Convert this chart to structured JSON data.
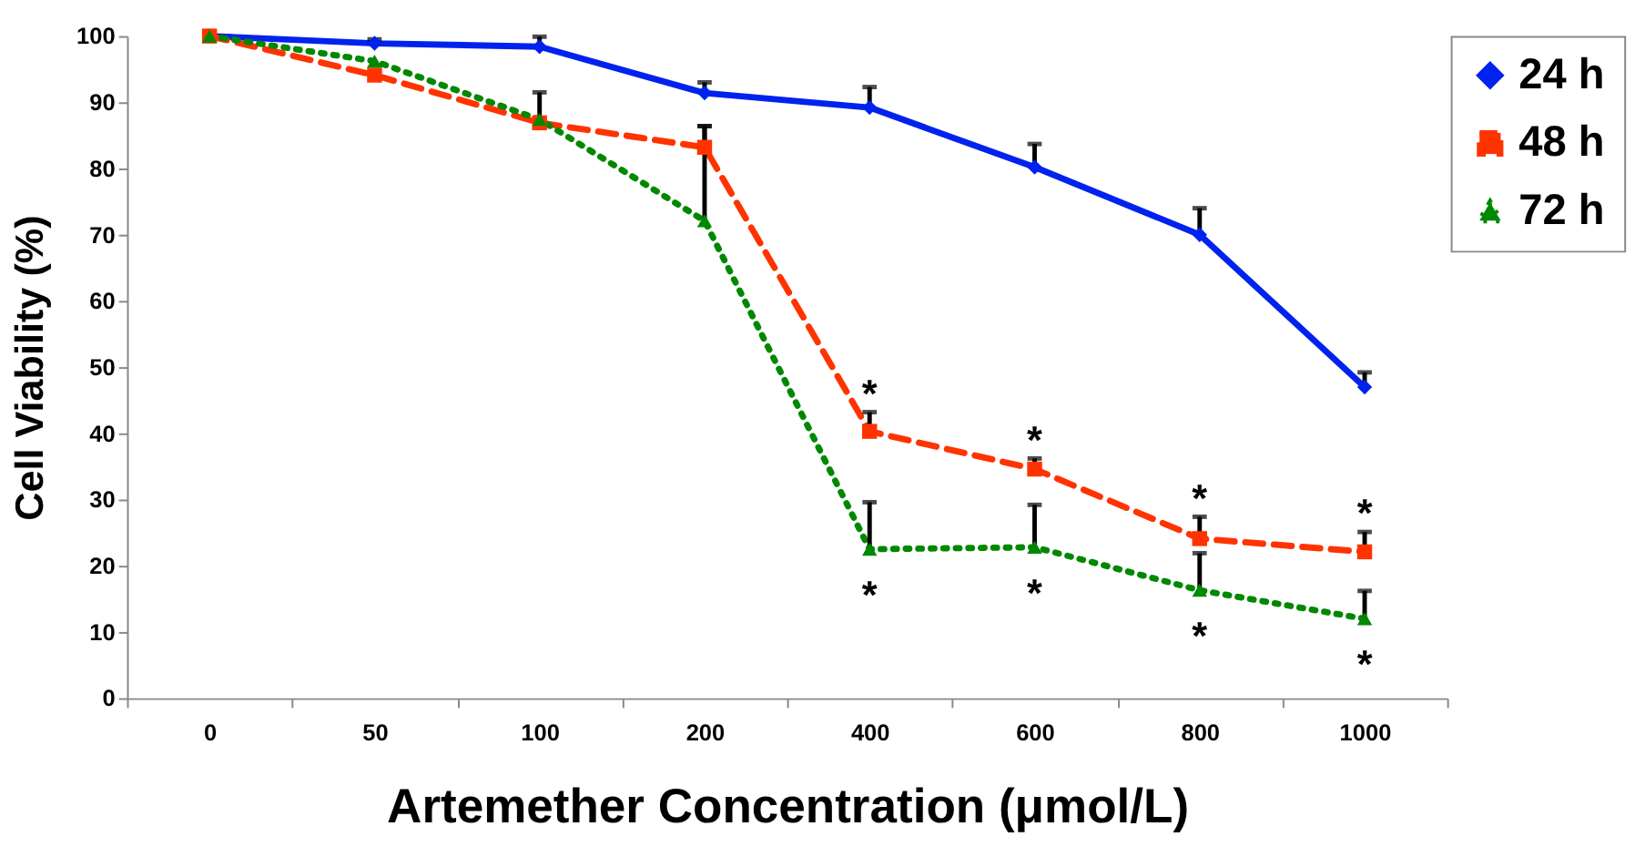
{
  "chart_data": {
    "type": "line",
    "xlabel": "Artemether Concentration (μmol/L)",
    "ylabel": "Cell Viability (%)",
    "categories": [
      "0",
      "50",
      "100",
      "200",
      "400",
      "600",
      "800",
      "1000"
    ],
    "ylim": [
      0,
      100
    ],
    "yticks": [
      0,
      10,
      20,
      30,
      40,
      50,
      60,
      70,
      80,
      90,
      100
    ],
    "grid": false,
    "legend": "top right",
    "series": [
      {
        "name": "24 h",
        "color": "#0022ee",
        "marker": "diamond",
        "line_style": "solid",
        "values": [
          100,
          98.9,
          98.4,
          91.4,
          89.2,
          80.2,
          70.0,
          47.0
        ],
        "errors": [
          null,
          [
            98.9,
            99.5
          ],
          [
            98.4,
            99.9
          ],
          [
            91.4,
            93.0
          ],
          [
            89.2,
            92.3
          ],
          [
            80.2,
            83.7
          ],
          [
            70.0,
            74.0
          ],
          [
            47.0,
            49.2
          ]
        ]
      },
      {
        "name": "48 h",
        "color": "#ff3300",
        "marker": "square",
        "line_style": "dashed",
        "values": [
          100,
          94.1,
          86.9,
          83.2,
          40.3,
          34.6,
          24.1,
          22.1
        ],
        "errors": [
          null,
          null,
          null,
          [
            83.2,
            86.4
          ],
          [
            40.3,
            43.2
          ],
          [
            34.6,
            36.2
          ],
          [
            24.1,
            27.4
          ],
          [
            22.1,
            25.1
          ]
        ]
      },
      {
        "name": "72 h",
        "color": "#008800",
        "marker": "triangle",
        "line_style": "dotted",
        "values": [
          100,
          96.2,
          87.4,
          72.1,
          22.5,
          22.8,
          16.3,
          12.0
        ],
        "errors": [
          null,
          null,
          [
            87.4,
            91.5
          ],
          [
            72.1,
            86.4
          ],
          [
            22.5,
            29.6
          ],
          [
            22.8,
            29.2
          ],
          [
            16.3,
            21.9
          ],
          [
            12.0,
            16.2
          ]
        ]
      }
    ],
    "annotations": [
      {
        "text": "*",
        "x": "400",
        "y": 43.2
      },
      {
        "text": "*",
        "x": "600",
        "y": 36.2
      },
      {
        "text": "*",
        "x": "800",
        "y": 27.4
      },
      {
        "text": "*",
        "x": "1000",
        "y": 25.1
      },
      {
        "text": "*",
        "x": "400",
        "y": 22.5
      },
      {
        "text": "*",
        "x": "600",
        "y": 22.8
      },
      {
        "text": "*",
        "x": "800",
        "y": 16.3
      },
      {
        "text": "*",
        "x": "1000",
        "y": 12.0
      }
    ]
  }
}
